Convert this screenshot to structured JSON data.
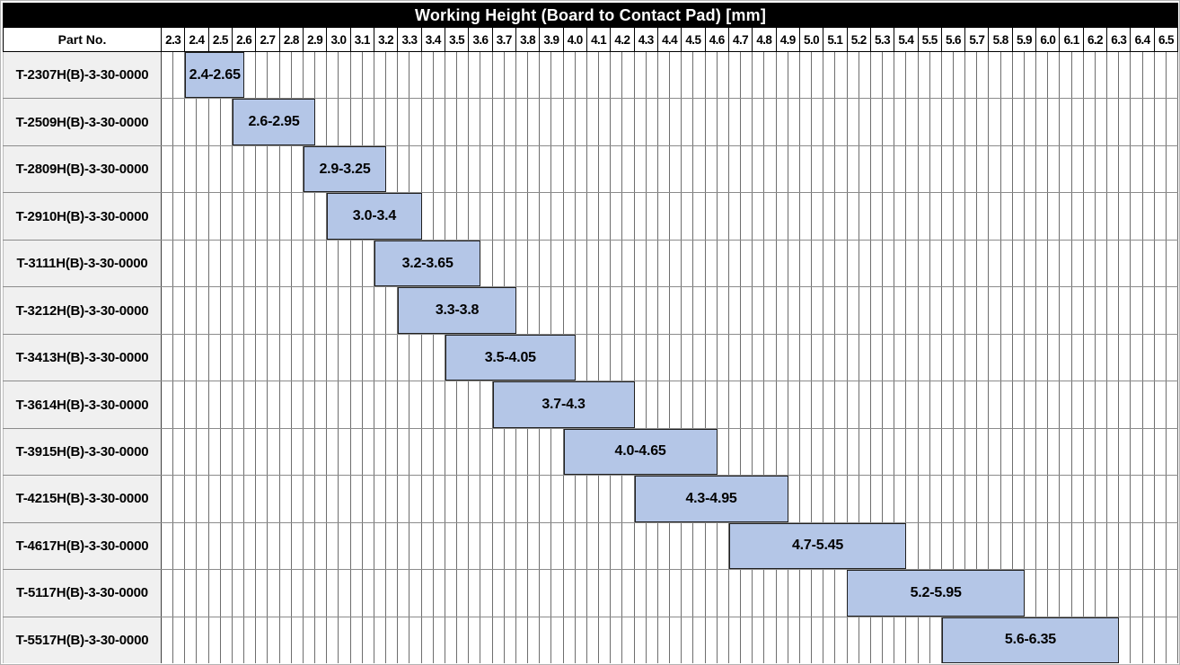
{
  "title": "Working Height (Board to Contact Pad) [mm]",
  "columns": {
    "part_no_header": "Part No."
  },
  "colors": {
    "title_bg": "#000000",
    "title_text": "#ffffff",
    "bar_fill": "#b4c6e7",
    "bar_border": "#1f1f1f",
    "part_cell_bg": "#f0f0f0",
    "grid_line": "#6e6e6e",
    "row_line": "#8b8b8b",
    "header_border": "#000000"
  },
  "chart_data": {
    "type": "bar",
    "orientation": "horizontal-range",
    "title": "Working Height (Board to Contact Pad) [mm]",
    "legend": "none",
    "grid": "on",
    "axis": {
      "min": 2.3,
      "max": 6.6,
      "tick_step": 0.1,
      "minor_step": 0.05,
      "ticks": [
        "2.3",
        "2.4",
        "2.5",
        "2.6",
        "2.7",
        "2.8",
        "2.9",
        "3.0",
        "3.1",
        "3.2",
        "3.3",
        "3.4",
        "3.5",
        "3.6",
        "3.7",
        "3.8",
        "3.9",
        "4.0",
        "4.1",
        "4.2",
        "4.3",
        "4.4",
        "4.5",
        "4.6",
        "4.7",
        "4.8",
        "4.9",
        "5.0",
        "5.1",
        "5.2",
        "5.3",
        "5.4",
        "5.5",
        "5.6",
        "5.7",
        "5.8",
        "5.9",
        "6.0",
        "6.1",
        "6.2",
        "6.3",
        "6.4",
        "6.5"
      ]
    },
    "rows": [
      {
        "part_no": "T-2307H(B)-3-30-0000",
        "start": 2.4,
        "end": 2.65,
        "label": "2.4-2.65"
      },
      {
        "part_no": "T-2509H(B)-3-30-0000",
        "start": 2.6,
        "end": 2.95,
        "label": "2.6-2.95"
      },
      {
        "part_no": "T-2809H(B)-3-30-0000",
        "start": 2.9,
        "end": 3.25,
        "label": "2.9-3.25"
      },
      {
        "part_no": "T-2910H(B)-3-30-0000",
        "start": 3.0,
        "end": 3.4,
        "label": "3.0-3.4"
      },
      {
        "part_no": "T-3111H(B)-3-30-0000",
        "start": 3.2,
        "end": 3.65,
        "label": "3.2-3.65"
      },
      {
        "part_no": "T-3212H(B)-3-30-0000",
        "start": 3.3,
        "end": 3.8,
        "label": "3.3-3.8"
      },
      {
        "part_no": "T-3413H(B)-3-30-0000",
        "start": 3.5,
        "end": 4.05,
        "label": "3.5-4.05"
      },
      {
        "part_no": "T-3614H(B)-3-30-0000",
        "start": 3.7,
        "end": 4.3,
        "label": "3.7-4.3"
      },
      {
        "part_no": "T-3915H(B)-3-30-0000",
        "start": 4.0,
        "end": 4.65,
        "label": "4.0-4.65"
      },
      {
        "part_no": "T-4215H(B)-3-30-0000",
        "start": 4.3,
        "end": 4.95,
        "label": "4.3-4.95"
      },
      {
        "part_no": "T-4617H(B)-3-30-0000",
        "start": 4.7,
        "end": 5.45,
        "label": "4.7-5.45"
      },
      {
        "part_no": "T-5117H(B)-3-30-0000",
        "start": 5.2,
        "end": 5.95,
        "label": "5.2-5.95"
      },
      {
        "part_no": "T-5517H(B)-3-30-0000",
        "start": 5.6,
        "end": 6.35,
        "label": "5.6-6.35"
      }
    ]
  }
}
